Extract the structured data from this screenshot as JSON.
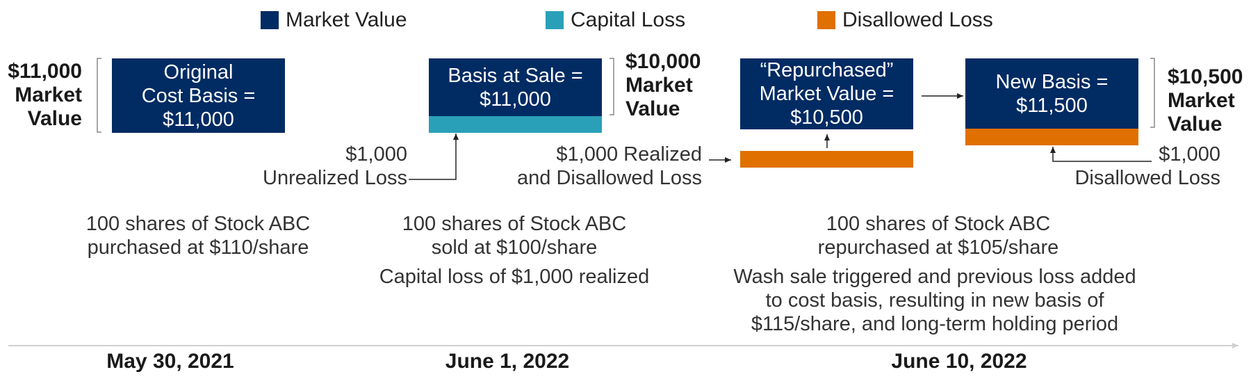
{
  "legend": [
    {
      "label": "Market Value",
      "color": "#002b63"
    },
    {
      "label": "Capital Loss",
      "color": "#2aa0b8"
    },
    {
      "label": "Disallowed Loss",
      "color": "#e07000"
    }
  ],
  "colors": {
    "market_value": "#002b63",
    "capital_loss": "#2aa0b8",
    "disallowed_loss": "#e07000",
    "line": "#222222",
    "timeline": "#cfcfcf"
  },
  "stage1": {
    "side_label": [
      "$11,000",
      "Market",
      "Value"
    ],
    "box_lines": [
      "Original",
      "Cost Basis =",
      "$11,000"
    ],
    "desc": [
      "100 shares of Stock ABC",
      "purchased at $110/share"
    ],
    "date": "May 30, 2021"
  },
  "stage2": {
    "box_lines": [
      "Basis at Sale =",
      "$11,000"
    ],
    "side_label": [
      "$10,000",
      "Market",
      "Value"
    ],
    "loss_label": [
      "$1,000",
      "Unrealized Loss"
    ],
    "desc": [
      "100 shares of Stock ABC",
      "sold at $100/share"
    ],
    "note": "Capital loss of $1,000 realized",
    "date": "June 1, 2022"
  },
  "stage3": {
    "box_lines": [
      "“Repurchased”",
      "Market Value =",
      "$10,500"
    ],
    "loss_label": [
      "$1,000 Realized",
      "and Disallowed Loss"
    ]
  },
  "stage4": {
    "box_lines": [
      "New Basis =",
      "$11,500"
    ],
    "side_label": [
      "$10,500",
      "Market",
      "Value"
    ],
    "loss_label": [
      "$1,000",
      "Disallowed Loss"
    ]
  },
  "stage34": {
    "desc": [
      "100 shares of Stock ABC",
      "repurchased at $105/share"
    ],
    "note": [
      "Wash sale triggered and previous loss added",
      "to cost basis, resulting in new basis of",
      "$115/share, and long-term holding period"
    ],
    "date": "June 10, 2022"
  }
}
